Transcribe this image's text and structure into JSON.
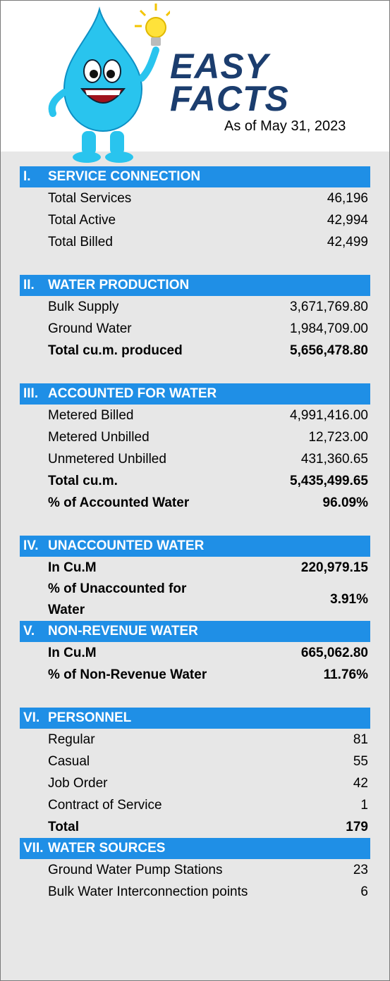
{
  "header": {
    "title_line1": "EASY",
    "title_line2": "FACTS",
    "date": "As of May 31, 2023"
  },
  "sections": [
    {
      "number": "I.",
      "title": "SERVICE CONNECTION",
      "rows": [
        {
          "label": "Total Services",
          "value": "46,196"
        },
        {
          "label": "Total Active",
          "value": "42,994"
        },
        {
          "label": "Total Billed",
          "value": "42,499"
        }
      ]
    },
    {
      "number": "II.",
      "title": "WATER PRODUCTION",
      "rows": [
        {
          "label": "Bulk Supply",
          "value": "3,671,769.80"
        },
        {
          "label": "Ground Water",
          "value": "1,984,709.00"
        },
        {
          "label": "Total cu.m. produced",
          "value": "5,656,478.80",
          "bold": true
        }
      ]
    },
    {
      "number": "III.",
      "title": "ACCOUNTED FOR WATER",
      "rows": [
        {
          "label": "Metered Billed",
          "value": "4,991,416.00"
        },
        {
          "label": "Metered Unbilled",
          "value": "12,723.00"
        },
        {
          "label": "Unmetered Unbilled",
          "value": "431,360.65"
        },
        {
          "label": "Total cu.m.",
          "value": "5,435,499.65",
          "bold": true
        },
        {
          "label": "% of Accounted Water",
          "value": "96.09%",
          "bold": true
        }
      ]
    },
    {
      "number": "IV.",
      "title": "UNACCOUNTED WATER",
      "rows": [
        {
          "label": "In Cu.M",
          "value": "220,979.15",
          "bold": true
        },
        {
          "label": "% of Unaccounted for Water",
          "value": "3.91%",
          "bold": true
        }
      ]
    },
    {
      "number": "V.",
      "title": "NON-REVENUE WATER",
      "rows": [
        {
          "label": "In Cu.M",
          "value": "665,062.80",
          "bold": true
        },
        {
          "label": "% of Non-Revenue Water",
          "value": "11.76%",
          "bold": true
        }
      ]
    },
    {
      "number": "VI.",
      "title": "PERSONNEL",
      "rows": [
        {
          "label": "Regular",
          "value": "81"
        },
        {
          "label": "Casual",
          "value": "55"
        },
        {
          "label": "Job Order",
          "value": "42"
        },
        {
          "label": "Contract of Service",
          "value": "1"
        },
        {
          "label": "Total",
          "value": "179",
          "bold": true
        }
      ]
    },
    {
      "number": "VII.",
      "title": "WATER SOURCES",
      "rows": [
        {
          "label": "Ground Water Pump Stations",
          "value": "23"
        },
        {
          "label": "Bulk Water Interconnection points",
          "value": "6"
        }
      ]
    }
  ]
}
